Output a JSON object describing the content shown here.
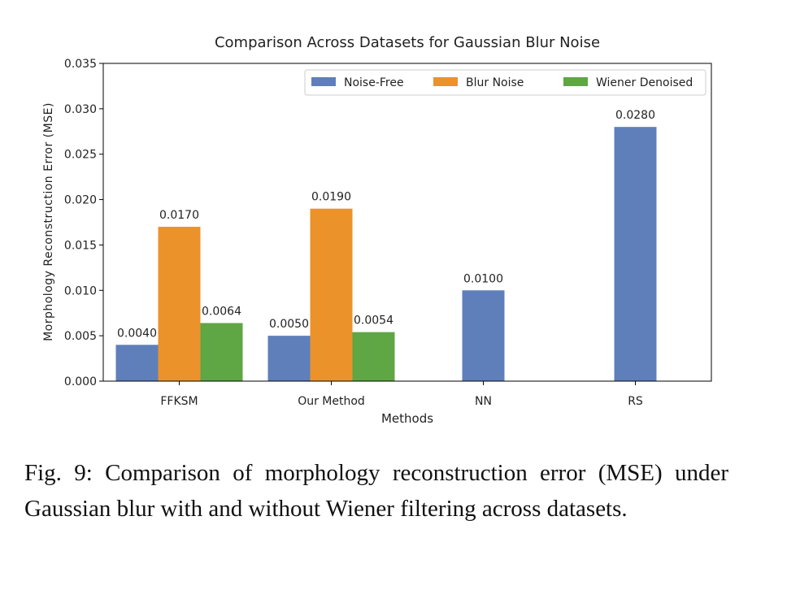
{
  "chart_data": {
    "type": "bar",
    "title": "Comparison Across Datasets for Gaussian Blur Noise",
    "x_label": "Methods",
    "y_label": "Morphology Reconstruction Error (MSE)",
    "categories": [
      "FFKSM",
      "Our Method",
      "NN",
      "RS"
    ],
    "series": [
      {
        "name": "Noise-Free",
        "color": "#5f7fbb",
        "values": [
          0.004,
          0.005,
          0.01,
          0.028
        ],
        "value_labels": [
          "0.0040",
          "0.0050",
          "0.0100",
          "0.0280"
        ]
      },
      {
        "name": "Blur Noise",
        "color": "#ec922b",
        "values": [
          0.017,
          0.019,
          null,
          null
        ],
        "value_labels": [
          "0.0170",
          "0.0190",
          null,
          null
        ]
      },
      {
        "name": "Wiener Denoised",
        "color": "#5ea744",
        "values": [
          0.0064,
          0.0054,
          null,
          null
        ],
        "value_labels": [
          "0.0064",
          "0.0054",
          null,
          null
        ]
      }
    ],
    "ylim": [
      0,
      0.035
    ],
    "yticks": [
      {
        "value": 0,
        "label": "0.000"
      },
      {
        "value": 0.005,
        "label": "0.005"
      },
      {
        "value": 0.01,
        "label": "0.010"
      },
      {
        "value": 0.015,
        "label": "0.015"
      },
      {
        "value": 0.02,
        "label": "0.020"
      },
      {
        "value": 0.025,
        "label": "0.025"
      },
      {
        "value": 0.03,
        "label": "0.030"
      },
      {
        "value": 0.035,
        "label": "0.035"
      }
    ],
    "legend": "upper right"
  },
  "caption": "Fig. 9: Comparison of morphology reconstruction error (MSE) under Gaussian blur with and without Wiener filtering across datasets."
}
